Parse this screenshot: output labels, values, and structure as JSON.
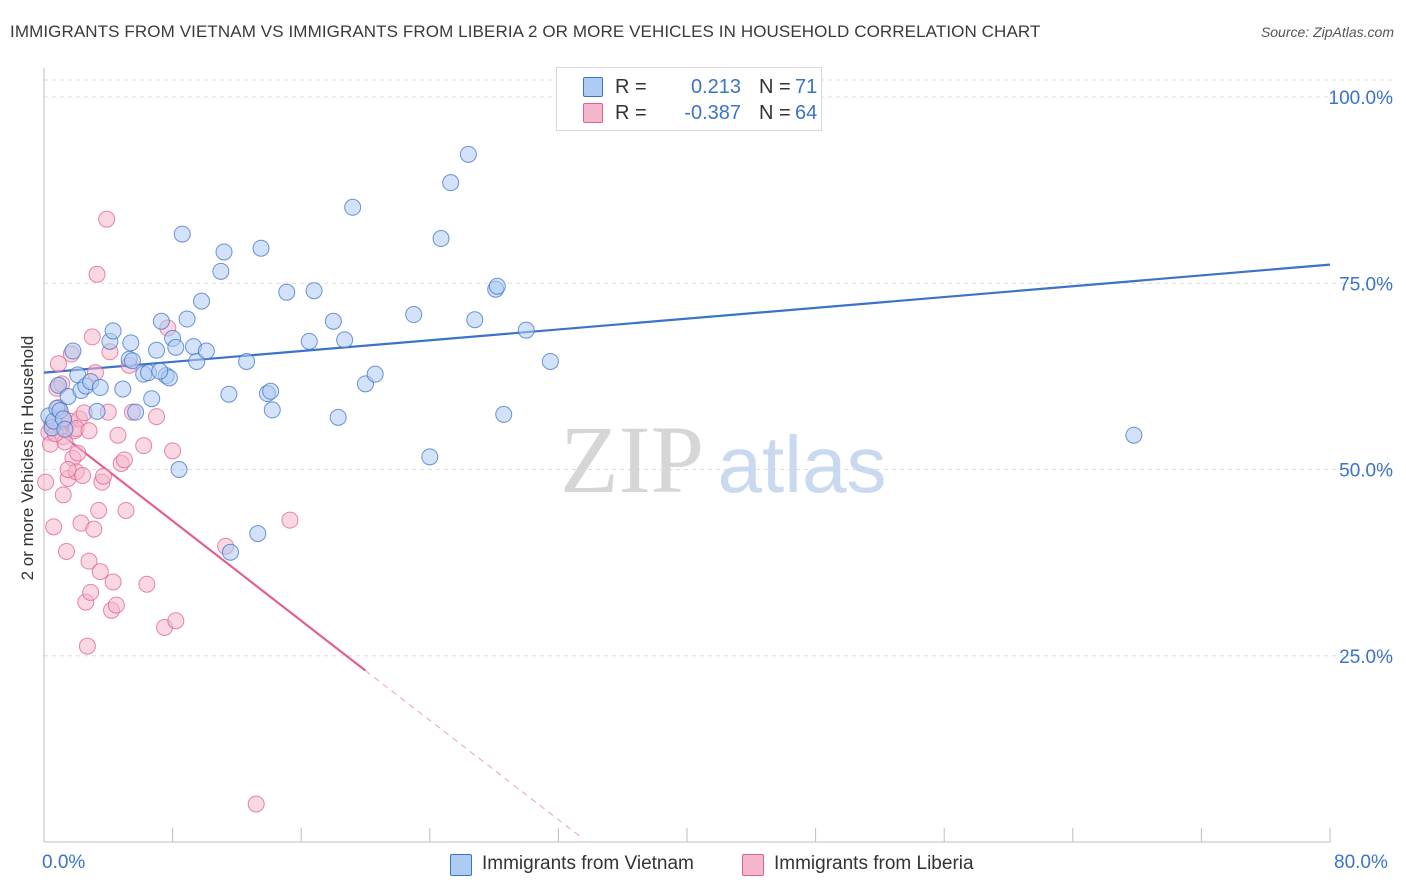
{
  "title": "IMMIGRANTS FROM VIETNAM VS IMMIGRANTS FROM LIBERIA 2 OR MORE VEHICLES IN HOUSEHOLD CORRELATION CHART",
  "source": "Source: ZipAtlas.com",
  "watermark": {
    "zip": "ZIP",
    "atlas": "atlas"
  },
  "colors": {
    "blue": "#3b73c8",
    "blue_fill": "#aecbf3",
    "pink": "#e06090",
    "pink_fill": "#f4b6cc",
    "grid": "#dcdcdc"
  },
  "legend": {
    "r_label": "R =",
    "n_label": "N =",
    "rows": [
      {
        "r": "0.213",
        "n": "71"
      },
      {
        "r": "-0.387",
        "n": "64"
      }
    ]
  },
  "chart_data": {
    "type": "scatter",
    "xlabel": "",
    "ylabel": "2 or more Vehicles in Household",
    "xlim": [
      0,
      80
    ],
    "ylim": [
      0,
      100
    ],
    "x_tick_labels": [
      "0.0%",
      "80.0%"
    ],
    "y_tick_labels": [
      "25.0%",
      "50.0%",
      "75.0%",
      "100.0%"
    ],
    "y_ticks": [
      25,
      50,
      75,
      100
    ],
    "series": [
      {
        "name": "Immigrants from Vietnam",
        "color": "#3b73c8",
        "R": 0.213,
        "N": 71,
        "trend": {
          "x": [
            0,
            80
          ],
          "y": [
            63.0,
            77.5
          ]
        },
        "points": [
          [
            0.3,
            57.2
          ],
          [
            0.5,
            55.6
          ],
          [
            0.6,
            56.5
          ],
          [
            0.8,
            58.2
          ],
          [
            0.9,
            61.3
          ],
          [
            1.0,
            57.9
          ],
          [
            1.2,
            56.8
          ],
          [
            1.3,
            55.4
          ],
          [
            1.5,
            59.8
          ],
          [
            1.8,
            65.9
          ],
          [
            2.1,
            62.7
          ],
          [
            2.3,
            60.6
          ],
          [
            2.6,
            61.2
          ],
          [
            2.9,
            61.8
          ],
          [
            3.3,
            57.8
          ],
          [
            3.5,
            61.0
          ],
          [
            4.1,
            67.2
          ],
          [
            4.3,
            68.6
          ],
          [
            4.9,
            60.8
          ],
          [
            5.3,
            64.8
          ],
          [
            5.4,
            67.0
          ],
          [
            5.7,
            57.7
          ],
          [
            6.2,
            62.8
          ],
          [
            6.5,
            63.0
          ],
          [
            6.7,
            59.5
          ],
          [
            7.0,
            66.0
          ],
          [
            7.3,
            69.9
          ],
          [
            7.6,
            62.6
          ],
          [
            7.8,
            62.3
          ],
          [
            8.0,
            67.6
          ],
          [
            8.2,
            66.4
          ],
          [
            8.4,
            50.0
          ],
          [
            8.6,
            81.6
          ],
          [
            8.9,
            70.2
          ],
          [
            9.3,
            66.5
          ],
          [
            9.5,
            64.5
          ],
          [
            9.8,
            72.6
          ],
          [
            10.1,
            65.9
          ],
          [
            11.0,
            76.6
          ],
          [
            11.2,
            79.2
          ],
          [
            11.5,
            60.1
          ],
          [
            12.6,
            64.5
          ],
          [
            13.3,
            41.4
          ],
          [
            13.5,
            79.7
          ],
          [
            13.9,
            60.2
          ],
          [
            14.1,
            60.5
          ],
          [
            14.2,
            58.0
          ],
          [
            15.1,
            73.8
          ],
          [
            16.5,
            67.2
          ],
          [
            16.8,
            74.0
          ],
          [
            18.0,
            69.9
          ],
          [
            18.7,
            67.4
          ],
          [
            18.3,
            57.0
          ],
          [
            19.2,
            85.2
          ],
          [
            20.0,
            61.5
          ],
          [
            20.6,
            62.8
          ],
          [
            23.0,
            70.8
          ],
          [
            24.0,
            51.7
          ],
          [
            24.7,
            81.0
          ],
          [
            25.3,
            88.5
          ],
          [
            26.4,
            92.3
          ],
          [
            26.8,
            70.1
          ],
          [
            28.1,
            74.2
          ],
          [
            28.2,
            74.6
          ],
          [
            28.6,
            57.4
          ],
          [
            30.0,
            68.7
          ],
          [
            31.5,
            64.5
          ],
          [
            67.8,
            54.6
          ],
          [
            11.6,
            38.9
          ],
          [
            7.2,
            63.2
          ],
          [
            5.5,
            64.6
          ]
        ]
      },
      {
        "name": "Immigrants from Liberia",
        "color": "#e06090",
        "R": -0.387,
        "N": 64,
        "trend": {
          "x": [
            0,
            20
          ],
          "y": [
            56.5,
            23.0
          ]
        },
        "trend_dashed": {
          "x": [
            20,
            33.5
          ],
          "y": [
            23.0,
            0.5
          ]
        },
        "points": [
          [
            0.1,
            48.3
          ],
          [
            0.3,
            55.0
          ],
          [
            0.4,
            53.4
          ],
          [
            0.5,
            56.0
          ],
          [
            0.6,
            42.3
          ],
          [
            0.8,
            60.9
          ],
          [
            0.9,
            64.2
          ],
          [
            1.0,
            55.8
          ],
          [
            1.1,
            57.2
          ],
          [
            1.2,
            54.4
          ],
          [
            1.3,
            53.7
          ],
          [
            1.4,
            39.0
          ],
          [
            1.5,
            48.8
          ],
          [
            1.6,
            56.5
          ],
          [
            1.7,
            65.5
          ],
          [
            1.8,
            51.5
          ],
          [
            1.9,
            55.2
          ],
          [
            2.0,
            49.7
          ],
          [
            2.1,
            52.2
          ],
          [
            2.2,
            56.8
          ],
          [
            2.3,
            42.8
          ],
          [
            2.4,
            49.2
          ],
          [
            2.5,
            57.6
          ],
          [
            2.6,
            32.2
          ],
          [
            2.7,
            26.3
          ],
          [
            2.8,
            37.7
          ],
          [
            2.9,
            33.5
          ],
          [
            3.0,
            67.8
          ],
          [
            3.1,
            42.0
          ],
          [
            3.2,
            63.0
          ],
          [
            3.3,
            76.2
          ],
          [
            3.4,
            44.5
          ],
          [
            3.5,
            36.3
          ],
          [
            3.6,
            48.3
          ],
          [
            3.7,
            49.1
          ],
          [
            3.9,
            83.6
          ],
          [
            4.0,
            57.7
          ],
          [
            4.1,
            65.8
          ],
          [
            4.2,
            31.1
          ],
          [
            4.3,
            34.9
          ],
          [
            4.5,
            31.8
          ],
          [
            4.6,
            54.6
          ],
          [
            4.8,
            50.8
          ],
          [
            5.0,
            51.3
          ],
          [
            5.1,
            44.5
          ],
          [
            5.3,
            64.0
          ],
          [
            5.5,
            57.7
          ],
          [
            6.2,
            53.2
          ],
          [
            6.4,
            34.6
          ],
          [
            7.0,
            57.1
          ],
          [
            7.5,
            28.8
          ],
          [
            7.7,
            69.0
          ],
          [
            8.0,
            52.5
          ],
          [
            8.2,
            29.7
          ],
          [
            11.3,
            39.7
          ],
          [
            13.2,
            5.1
          ],
          [
            15.3,
            43.2
          ],
          [
            1.2,
            46.6
          ],
          [
            0.7,
            54.8
          ],
          [
            2.0,
            55.5
          ],
          [
            1.5,
            50.0
          ],
          [
            0.9,
            58.3
          ],
          [
            2.8,
            55.2
          ],
          [
            1.1,
            61.5
          ]
        ]
      }
    ]
  }
}
